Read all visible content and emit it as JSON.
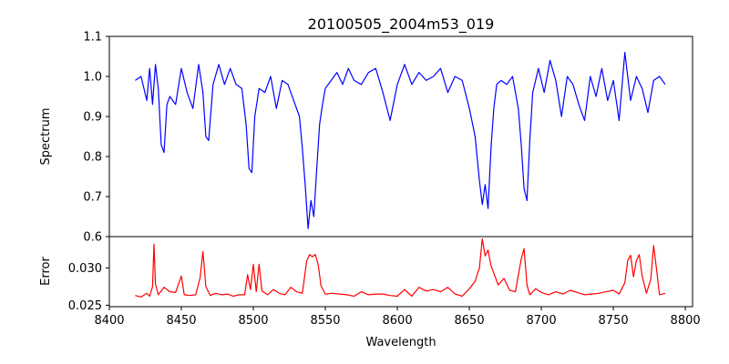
{
  "chart_data": [
    {
      "type": "line",
      "title": "20100505_2004m53_019",
      "xlabel": "",
      "ylabel": "Spectrum",
      "xlim": [
        8400,
        8805
      ],
      "ylim": [
        0.6,
        1.1
      ],
      "yticks": [
        "0.6",
        "0.7",
        "0.8",
        "0.9",
        "1.0",
        "1.1"
      ],
      "grid": false,
      "series": [
        {
          "color": "#0000ff",
          "x": [
            8418,
            8422,
            8426,
            8428,
            8430,
            8432,
            8434,
            8436,
            8438,
            8440,
            8442,
            8446,
            8450,
            8454,
            8458,
            8462,
            8465,
            8467,
            8469,
            8472,
            8476,
            8480,
            8484,
            8488,
            8492,
            8495,
            8497,
            8499,
            8501,
            8504,
            8508,
            8512,
            8516,
            8520,
            8524,
            8528,
            8532,
            8534,
            8536,
            8538,
            8540,
            8542,
            8544,
            8546,
            8548,
            8550,
            8554,
            8558,
            8562,
            8566,
            8570,
            8575,
            8580,
            8585,
            8590,
            8595,
            8600,
            8605,
            8610,
            8615,
            8620,
            8625,
            8630,
            8635,
            8640,
            8645,
            8650,
            8654,
            8657,
            8659,
            8661,
            8663,
            8665,
            8667,
            8669,
            8672,
            8676,
            8680,
            8684,
            8686,
            8688,
            8690,
            8692,
            8694,
            8698,
            8702,
            8706,
            8710,
            8714,
            8718,
            8722,
            8726,
            8730,
            8734,
            8738,
            8742,
            8746,
            8750,
            8754,
            8758,
            8762,
            8766,
            8770,
            8774,
            8778,
            8782,
            8786
          ],
          "y": [
            0.99,
            1.0,
            0.94,
            1.02,
            0.93,
            1.03,
            0.97,
            0.83,
            0.81,
            0.93,
            0.95,
            0.93,
            1.02,
            0.96,
            0.92,
            1.03,
            0.96,
            0.85,
            0.84,
            0.98,
            1.03,
            0.98,
            1.02,
            0.98,
            0.97,
            0.88,
            0.77,
            0.76,
            0.9,
            0.97,
            0.96,
            1.0,
            0.92,
            0.99,
            0.98,
            0.94,
            0.9,
            0.82,
            0.73,
            0.62,
            0.69,
            0.65,
            0.77,
            0.88,
            0.93,
            0.97,
            0.99,
            1.01,
            0.98,
            1.02,
            0.99,
            0.98,
            1.01,
            1.02,
            0.96,
            0.89,
            0.98,
            1.03,
            0.98,
            1.01,
            0.99,
            1.0,
            1.02,
            0.96,
            1.0,
            0.99,
            0.92,
            0.85,
            0.74,
            0.68,
            0.73,
            0.67,
            0.82,
            0.92,
            0.98,
            0.99,
            0.98,
            1.0,
            0.92,
            0.83,
            0.72,
            0.69,
            0.84,
            0.96,
            1.02,
            0.96,
            1.04,
            0.99,
            0.9,
            1.0,
            0.98,
            0.93,
            0.89,
            1.0,
            0.95,
            1.02,
            0.94,
            0.99,
            0.89,
            1.06,
            0.94,
            1.0,
            0.97,
            0.91,
            0.99,
            1.0,
            0.98
          ]
        }
      ]
    },
    {
      "type": "line",
      "title": "",
      "xlabel": "Wavelength",
      "ylabel": "Error",
      "xlim": [
        8400,
        8805
      ],
      "ylim": [
        0.0248,
        0.0342
      ],
      "xticks": [
        "8400",
        "8450",
        "8500",
        "8550",
        "8600",
        "8650",
        "8700",
        "8750",
        "8800"
      ],
      "yticks": [
        "0.025",
        "0.030"
      ],
      "grid": false,
      "series": [
        {
          "color": "#ff0000",
          "x": [
            8418,
            8422,
            8426,
            8428,
            8430,
            8431,
            8432,
            8434,
            8438,
            8442,
            8446,
            8450,
            8452,
            8456,
            8460,
            8463,
            8465,
            8467,
            8470,
            8474,
            8478,
            8482,
            8486,
            8490,
            8494,
            8496,
            8498,
            8500,
            8502,
            8504,
            8506,
            8510,
            8514,
            8518,
            8522,
            8526,
            8530,
            8534,
            8537,
            8539,
            8541,
            8543,
            8545,
            8547,
            8550,
            8555,
            8560,
            8565,
            8570,
            8575,
            8580,
            8585,
            8590,
            8595,
            8600,
            8605,
            8610,
            8615,
            8620,
            8625,
            8630,
            8635,
            8640,
            8645,
            8650,
            8654,
            8657,
            8659,
            8661,
            8663,
            8665,
            8667,
            8670,
            8674,
            8678,
            8682,
            8686,
            8688,
            8690,
            8692,
            8696,
            8700,
            8705,
            8710,
            8715,
            8720,
            8725,
            8730,
            8735,
            8740,
            8745,
            8750,
            8754,
            8758,
            8760,
            8762,
            8764,
            8766,
            8768,
            8770,
            8773,
            8776,
            8778,
            8780,
            8782,
            8786
          ],
          "y": [
            0.0263,
            0.0261,
            0.0266,
            0.0262,
            0.0275,
            0.0332,
            0.0278,
            0.0264,
            0.0274,
            0.0268,
            0.0267,
            0.0289,
            0.0264,
            0.0263,
            0.0264,
            0.0287,
            0.0322,
            0.0275,
            0.0263,
            0.0266,
            0.0264,
            0.0265,
            0.0262,
            0.0264,
            0.0264,
            0.0291,
            0.0271,
            0.0305,
            0.0268,
            0.0305,
            0.0269,
            0.0264,
            0.0271,
            0.0266,
            0.0264,
            0.0274,
            0.0268,
            0.0266,
            0.0309,
            0.0318,
            0.0315,
            0.0318,
            0.0305,
            0.0276,
            0.0265,
            0.0266,
            0.0265,
            0.0264,
            0.0262,
            0.0268,
            0.0264,
            0.0265,
            0.0265,
            0.0263,
            0.0262,
            0.0271,
            0.0262,
            0.0274,
            0.0269,
            0.0271,
            0.0268,
            0.0274,
            0.0265,
            0.0262,
            0.0272,
            0.0282,
            0.03,
            0.0339,
            0.0316,
            0.0324,
            0.0303,
            0.0293,
            0.0277,
            0.0286,
            0.027,
            0.0268,
            0.0312,
            0.0326,
            0.0277,
            0.0264,
            0.0272,
            0.0267,
            0.0264,
            0.0268,
            0.0265,
            0.027,
            0.0267,
            0.0264,
            0.0265,
            0.0266,
            0.0268,
            0.027,
            0.0265,
            0.028,
            0.031,
            0.0317,
            0.0288,
            0.031,
            0.0318,
            0.0289,
            0.0266,
            0.0285,
            0.033,
            0.0298,
            0.0264,
            0.0266
          ]
        }
      ]
    }
  ]
}
